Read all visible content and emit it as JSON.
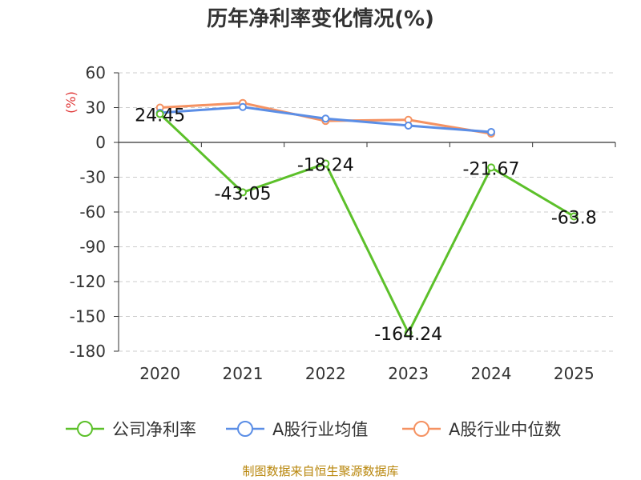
{
  "chart_data": {
    "type": "line",
    "title": "历年净利率变化情况(%)",
    "ylabel": "(%)",
    "xlabel": "",
    "categories": [
      "2020",
      "2021",
      "2022",
      "2023",
      "2024",
      "2025"
    ],
    "ylim": [
      -180,
      60
    ],
    "yticks": [
      60,
      30,
      0,
      -30,
      -60,
      -90,
      -120,
      -150,
      -180
    ],
    "ytick_labels": [
      "60",
      "30",
      "0",
      "-30",
      "-60",
      "-90",
      "-120",
      "-150",
      "-180"
    ],
    "grid": true,
    "legend_position": "bottom",
    "series": [
      {
        "name": "公司净利率",
        "color": "#5cc02a",
        "values": [
          24.45,
          -43.05,
          -18.24,
          -164.24,
          -21.67,
          -63.8
        ],
        "labels": [
          "24.45",
          "-43.05",
          "-18.24",
          "-164.24",
          "-21.67",
          "-63.8"
        ]
      },
      {
        "name": "A股行业均值",
        "color": "#5b8ee6",
        "values": [
          25.5,
          30.5,
          20.5,
          14.5,
          9.0,
          null
        ]
      },
      {
        "name": "A股行业中位数",
        "color": "#f59262",
        "values": [
          30.0,
          34.0,
          18.5,
          19.5,
          7.5,
          null
        ]
      }
    ]
  },
  "source": "制图数据来自恒生聚源数据库"
}
